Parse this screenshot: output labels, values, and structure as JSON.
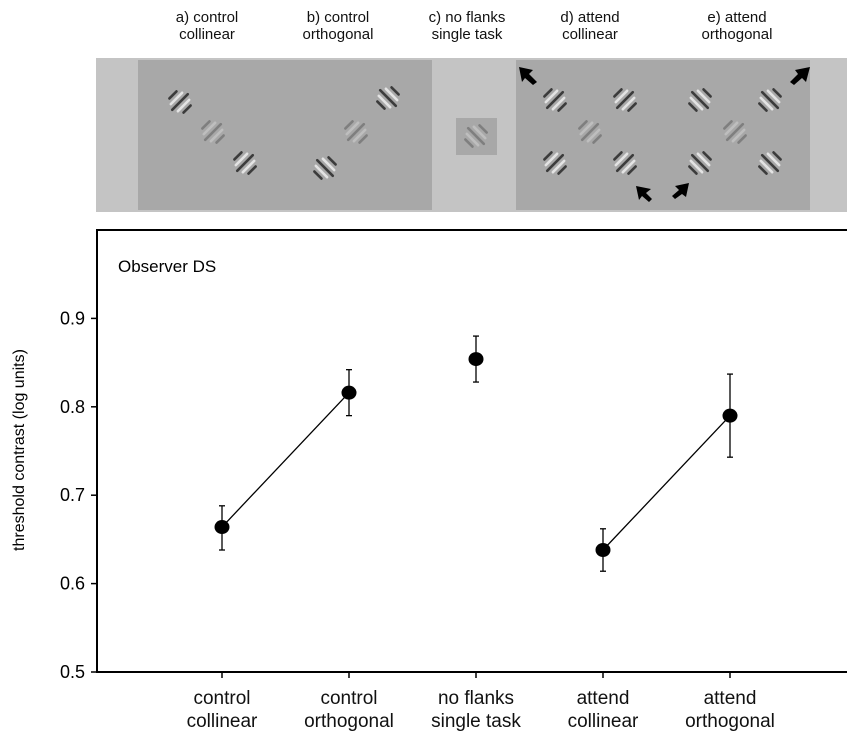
{
  "stimulus_labels": [
    "a) control collinear",
    "b) control orthogonal",
    "c) no flanks single task",
    "d) attend collinear",
    "e) attend orthogonal"
  ],
  "chart_data": {
    "type": "errorbar",
    "annotation": "Observer DS",
    "y_label": "threshold contrast (log units)",
    "categories": [
      "control collinear",
      "control orthogonal",
      "no flanks single task",
      "attend collinear",
      "attend orthogonal"
    ],
    "values": [
      0.664,
      0.816,
      0.854,
      0.638,
      0.79
    ],
    "error_low": [
      0.638,
      0.79,
      0.828,
      0.614,
      0.743
    ],
    "error_high": [
      0.688,
      0.842,
      0.88,
      0.662,
      0.837
    ],
    "connect": [
      [
        0,
        1
      ],
      [
        3,
        4
      ]
    ],
    "color": "#000000",
    "ylim": [
      0.5,
      1.0
    ],
    "yticks": [
      0.5,
      0.6,
      0.7,
      0.8,
      0.9
    ]
  }
}
